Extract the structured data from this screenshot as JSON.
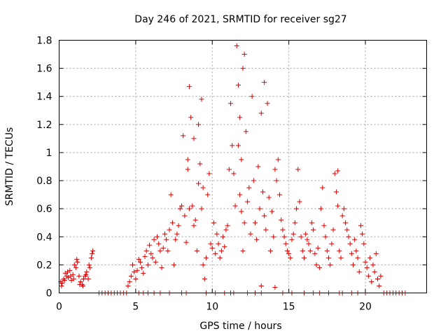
{
  "chart_data": {
    "type": "scatter",
    "title": "Day 246 of 2021, SRMTID for receiver sg27",
    "xlabel": "GPS time / hours",
    "ylabel": "SRMTID / TECUs",
    "xlim": [
      0,
      24
    ],
    "ylim": [
      0,
      1.8
    ],
    "xticks": [
      0,
      5,
      10,
      15,
      20
    ],
    "xtick_labels": [
      "0",
      "5",
      "10",
      "15",
      "20"
    ],
    "yticks": [
      0,
      0.2,
      0.4,
      0.6,
      0.8,
      1.0,
      1.2,
      1.4,
      1.6,
      1.8
    ],
    "ytick_labels": [
      "0",
      "0.2",
      "0.4",
      "0.6",
      "0.8",
      "1",
      "1.2",
      "1.4",
      "1.6",
      "1.8"
    ],
    "grid": true,
    "marker": "+",
    "color": "#e00000",
    "series": [
      {
        "name": "SRMTID",
        "x": [
          0.1,
          0.2,
          0.3,
          0.4,
          0.5,
          0.6,
          0.7,
          0.8,
          0.9,
          1.0,
          1.1,
          1.2,
          1.3,
          1.4,
          1.5,
          1.6,
          1.7,
          1.8,
          1.9,
          2.0,
          2.1,
          2.2,
          0.15,
          0.35,
          0.55,
          0.75,
          0.95,
          1.15,
          1.35,
          1.55,
          1.75,
          1.95,
          2.15,
          4.5,
          4.6,
          4.7,
          4.8,
          4.9,
          5.0,
          5.1,
          5.2,
          5.3,
          5.4,
          5.5,
          5.6,
          5.7,
          5.8,
          5.9,
          6.0,
          6.1,
          6.2,
          6.3,
          6.4,
          6.5,
          6.6,
          6.7,
          6.8,
          6.9,
          7.0,
          7.1,
          7.2,
          7.3,
          7.4,
          7.5,
          7.6,
          7.7,
          7.8,
          7.9,
          8.0,
          8.1,
          8.2,
          8.3,
          8.4,
          8.5,
          8.6,
          8.7,
          8.8,
          8.9,
          9.0,
          9.1,
          9.2,
          9.3,
          9.4,
          9.5,
          9.6,
          9.7,
          9.8,
          9.9,
          10.0,
          10.1,
          10.2,
          10.3,
          10.4,
          10.5,
          10.6,
          10.7,
          10.8,
          10.9,
          11.0,
          11.1,
          11.2,
          11.3,
          11.4,
          11.5,
          11.6,
          11.7,
          11.8,
          11.9,
          12.0,
          12.1,
          12.2,
          12.3,
          12.4,
          12.5,
          12.6,
          12.7,
          12.8,
          12.9,
          13.0,
          13.1,
          13.2,
          13.3,
          13.4,
          13.5,
          13.6,
          13.7,
          13.8,
          13.9,
          14.0,
          14.1,
          14.2,
          14.3,
          14.4,
          14.5,
          14.6,
          14.7,
          14.8,
          14.9,
          15.0,
          15.1,
          15.2,
          15.3,
          15.4,
          15.5,
          15.6,
          15.7,
          15.8,
          15.9,
          16.0,
          16.1,
          16.2,
          16.3,
          16.4,
          16.5,
          16.6,
          16.7,
          16.8,
          16.9,
          17.0,
          17.1,
          17.2,
          17.3,
          17.4,
          17.5,
          17.6,
          17.7,
          17.8,
          17.9,
          18.0,
          18.1,
          18.2,
          18.3,
          18.4,
          18.5,
          18.6,
          18.7,
          18.8,
          18.9,
          19.0,
          19.1,
          19.2,
          19.3,
          19.4,
          19.5,
          19.6,
          19.7,
          19.8,
          19.9,
          20.0,
          20.1,
          20.2,
          20.3,
          20.4,
          20.5,
          20.6,
          20.7,
          20.8,
          20.9,
          21.0,
          8.4,
          8.5,
          8.8,
          9.1,
          9.3,
          9.4,
          11.7,
          11.8,
          11.9,
          12.0,
          12.1,
          13.2,
          13.4,
          14.1,
          18.2,
          2.6,
          2.8,
          3.0,
          3.2,
          3.4,
          3.6,
          3.8,
          4.0,
          4.2,
          4.4,
          5.2,
          5.5,
          5.8,
          6.2,
          6.6,
          7.2,
          8.0,
          8.3,
          9.6,
          10.2,
          10.8,
          11.2,
          11.4,
          12.3,
          12.8,
          13.2,
          14.6,
          15.2,
          16.0,
          16.6,
          17.0,
          17.6,
          18.3,
          18.5,
          19.1,
          19.5,
          20.0,
          21.2,
          21.4,
          21.6,
          21.8,
          22.0,
          22.2,
          22.4,
          22.6
        ],
        "y": [
          0.08,
          0.07,
          0.1,
          0.14,
          0.12,
          0.11,
          0.16,
          0.09,
          0.13,
          0.2,
          0.18,
          0.22,
          0.12,
          0.08,
          0.06,
          0.1,
          0.12,
          0.15,
          0.1,
          0.18,
          0.25,
          0.3,
          0.05,
          0.09,
          0.15,
          0.12,
          0.1,
          0.24,
          0.06,
          0.05,
          0.13,
          0.2,
          0.28,
          0.05,
          0.08,
          0.12,
          0.2,
          0.15,
          0.1,
          0.16,
          0.24,
          0.22,
          0.18,
          0.14,
          0.26,
          0.3,
          0.2,
          0.34,
          0.28,
          0.25,
          0.38,
          0.22,
          0.4,
          0.35,
          0.3,
          0.18,
          0.32,
          0.42,
          0.38,
          0.3,
          0.45,
          0.7,
          0.5,
          0.2,
          0.38,
          0.42,
          0.48,
          0.6,
          0.62,
          1.12,
          0.55,
          0.36,
          0.88,
          1.47,
          1.25,
          0.62,
          0.48,
          0.52,
          0.3,
          0.78,
          0.92,
          0.6,
          0.2,
          0.1,
          0.25,
          0.7,
          0.85,
          0.35,
          0.32,
          0.5,
          0.28,
          0.42,
          0.35,
          0.25,
          0.3,
          0.4,
          0.33,
          0.45,
          0.48,
          0.88,
          1.35,
          1.05,
          0.85,
          0.62,
          1.76,
          1.48,
          0.7,
          0.58,
          0.3,
          0.5,
          1.15,
          0.65,
          0.75,
          0.42,
          1.4,
          0.8,
          0.5,
          0.38,
          0.9,
          0.6,
          1.28,
          0.72,
          0.55,
          0.45,
          1.35,
          0.68,
          0.3,
          0.58,
          0.4,
          0.88,
          0.8,
          0.95,
          0.7,
          0.52,
          0.45,
          0.4,
          0.35,
          0.3,
          0.28,
          0.25,
          0.38,
          0.42,
          0.5,
          0.6,
          0.88,
          0.65,
          0.4,
          0.3,
          0.25,
          0.42,
          0.38,
          0.35,
          0.3,
          0.5,
          0.45,
          0.28,
          0.2,
          0.32,
          0.18,
          0.6,
          0.75,
          0.48,
          0.4,
          0.3,
          0.25,
          0.2,
          0.35,
          0.45,
          0.85,
          0.72,
          0.62,
          0.3,
          0.25,
          0.55,
          0.6,
          0.5,
          0.45,
          0.4,
          0.35,
          0.28,
          0.2,
          0.38,
          0.3,
          0.25,
          0.15,
          0.48,
          0.42,
          0.35,
          0.22,
          0.18,
          0.12,
          0.25,
          0.08,
          0.2,
          0.15,
          0.28,
          0.1,
          0.05,
          0.12,
          0.95,
          0.6,
          1.1,
          1.2,
          1.38,
          0.75,
          1.05,
          1.25,
          0.95,
          1.6,
          1.7,
          0.05,
          1.5,
          0.04,
          0.87,
          0,
          0,
          0,
          0,
          0,
          0,
          0,
          0,
          0,
          0,
          0,
          0,
          0,
          0,
          0,
          0,
          0,
          0,
          0,
          0,
          0,
          0,
          0,
          0,
          0,
          0,
          0,
          0,
          0,
          0,
          0,
          0,
          0,
          0,
          0,
          0,
          0,
          0,
          0,
          0,
          0,
          0,
          0,
          0,
          0
        ]
      }
    ]
  }
}
